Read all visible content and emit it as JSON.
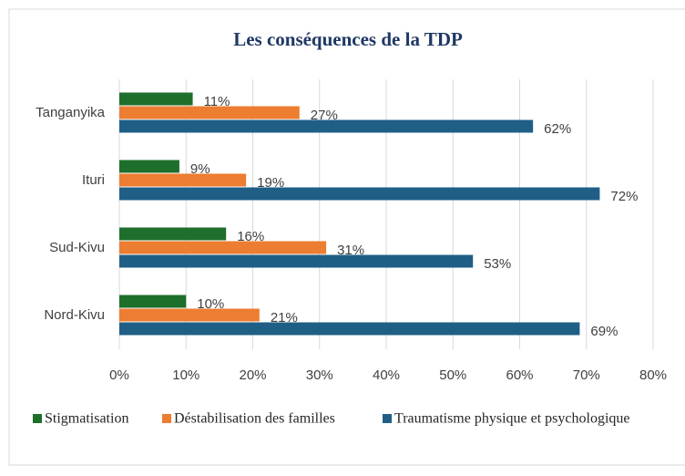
{
  "chart_data": {
    "type": "hbar",
    "title": "Les conséquences de la TDP",
    "categories": [
      "Tanganyika",
      "Ituri",
      "Sud-Kivu",
      "Nord-Kivu"
    ],
    "series": [
      {
        "name": "Stigmatisation",
        "color": "#1e6f2b",
        "values": [
          11,
          9,
          16,
          10
        ],
        "value_labels": [
          "11%",
          "9%",
          "16%",
          "10%"
        ]
      },
      {
        "name": "Déstabilisation des familles",
        "color": "#ed7d31",
        "values": [
          27,
          19,
          31,
          21
        ],
        "value_labels": [
          "27%",
          "19%",
          "31%",
          "21%"
        ]
      },
      {
        "name": "Traumatisme physique et psychologique",
        "color": "#1f5f86",
        "values": [
          62,
          72,
          53,
          69
        ],
        "value_labels": [
          "62%",
          "72%",
          "53%",
          "69%"
        ]
      }
    ],
    "xlim": [
      0,
      80
    ],
    "xticks": [
      {
        "value": 0,
        "label": "0%"
      },
      {
        "value": 10,
        "label": "10%"
      },
      {
        "value": 20,
        "label": "20%"
      },
      {
        "value": 30,
        "label": "30%"
      },
      {
        "value": 40,
        "label": "40%"
      },
      {
        "value": 50,
        "label": "50%"
      },
      {
        "value": 60,
        "label": "60%"
      },
      {
        "value": 70,
        "label": "70%"
      },
      {
        "value": 80,
        "label": "80%"
      }
    ],
    "grid": true,
    "legend": "bottom"
  }
}
